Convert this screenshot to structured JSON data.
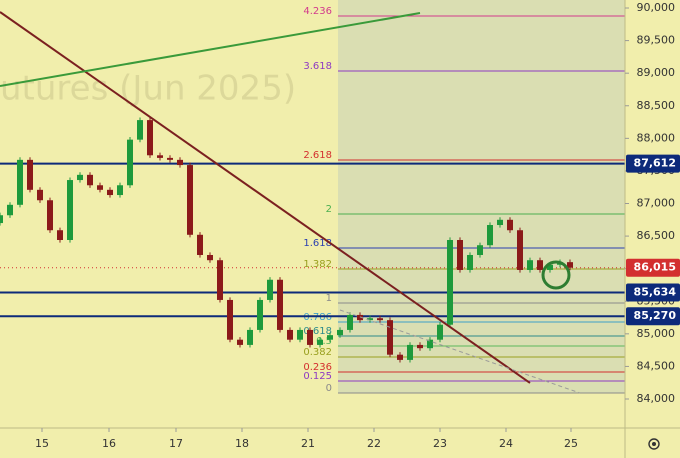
{
  "chart_data": {
    "type": "candlestick",
    "watermark": "utures (Jun 2025)",
    "x": [
      0,
      1,
      2,
      3,
      4,
      5,
      6,
      7,
      8,
      9,
      10,
      11,
      12,
      13,
      14,
      15,
      16,
      17,
      18,
      19,
      20,
      21,
      22,
      23,
      24,
      25,
      26,
      27,
      28,
      29,
      30,
      31,
      32,
      33,
      34,
      35,
      36,
      37,
      38,
      39,
      40,
      41,
      42,
      43,
      44,
      45,
      46,
      47,
      48,
      49,
      50,
      51,
      52,
      53,
      54,
      55,
      56,
      57
    ],
    "open": [
      86700,
      86820,
      86980,
      87670,
      87210,
      87050,
      86590,
      86440,
      87360,
      87440,
      87280,
      87210,
      87130,
      87280,
      87980,
      88280,
      87740,
      87700,
      87670,
      87590,
      86520,
      86210,
      86130,
      85520,
      84910,
      84830,
      85060,
      85520,
      85830,
      85060,
      84910,
      85060,
      84830,
      84910,
      84980,
      85060,
      85290,
      85210,
      85240,
      85210,
      84680,
      84600,
      84830,
      84780,
      84910,
      85140,
      86440,
      85980,
      86210,
      86360,
      86670,
      86750,
      86590,
      85980,
      86130,
      85980,
      86060,
      86100
    ],
    "high": [
      86860,
      87020,
      87710,
      87710,
      87250,
      87090,
      86630,
      87400,
      87480,
      87480,
      87320,
      87250,
      87320,
      88020,
      88320,
      88320,
      87780,
      87740,
      87710,
      87630,
      86560,
      86250,
      86170,
      85560,
      84950,
      85100,
      85560,
      85870,
      85870,
      85100,
      85100,
      85100,
      84950,
      85020,
      85100,
      85330,
      85330,
      85280,
      85280,
      85250,
      84720,
      84870,
      84870,
      84950,
      85180,
      86480,
      86480,
      86250,
      86400,
      86710,
      86790,
      86790,
      86630,
      86170,
      86170,
      86100,
      86140,
      86140
    ],
    "low": [
      86660,
      86780,
      86940,
      87170,
      87010,
      86550,
      86400,
      86400,
      87320,
      87240,
      87170,
      87090,
      87090,
      87240,
      87940,
      87700,
      87660,
      87630,
      87550,
      86480,
      86170,
      86090,
      85480,
      84870,
      84790,
      84790,
      85020,
      85480,
      85020,
      84870,
      84870,
      84790,
      84790,
      84870,
      84940,
      85020,
      85170,
      85170,
      85170,
      84640,
      84560,
      84560,
      84740,
      84740,
      84870,
      85100,
      85940,
      85940,
      86170,
      86320,
      86630,
      86550,
      85940,
      85940,
      85940,
      85940,
      86020,
      85975
    ],
    "close": [
      86820,
      86980,
      87670,
      87210,
      87050,
      86590,
      86440,
      87360,
      87440,
      87280,
      87210,
      87130,
      87280,
      87980,
      88280,
      87740,
      87700,
      87670,
      87590,
      86520,
      86210,
      86130,
      85520,
      84910,
      84830,
      85060,
      85520,
      85830,
      85060,
      84910,
      85060,
      84830,
      84910,
      84980,
      85060,
      85290,
      85210,
      85240,
      85210,
      84680,
      84600,
      84830,
      84780,
      84910,
      85140,
      86440,
      85980,
      86210,
      86360,
      86670,
      86750,
      86590,
      85980,
      86130,
      85980,
      86060,
      86100,
      86015
    ],
    "up_color": "#1e9a3c",
    "down_color": "#8b1a1a",
    "xlim": [
      0,
      62.5
    ],
    "xticks": [
      {
        "value": 4.2,
        "label": "15"
      },
      {
        "value": 10.9,
        "label": "16"
      },
      {
        "value": 17.6,
        "label": "17"
      },
      {
        "value": 24.2,
        "label": "18"
      },
      {
        "value": 30.8,
        "label": "21"
      },
      {
        "value": 37.4,
        "label": "22"
      },
      {
        "value": 44.0,
        "label": "23"
      },
      {
        "value": 50.6,
        "label": "24"
      },
      {
        "value": 57.1,
        "label": "25"
      }
    ],
    "ylim": [
      83555,
      90123
    ],
    "yticks": [
      {
        "value": 84000,
        "label": "84,000"
      },
      {
        "value": 84500,
        "label": "84,500"
      },
      {
        "value": 85000,
        "label": "85,000"
      },
      {
        "value": 85500,
        "label": "85,500"
      },
      {
        "value": 86000,
        "label": "86,000"
      },
      {
        "value": 86500,
        "label": "86,500"
      },
      {
        "value": 87000,
        "label": "87,000"
      },
      {
        "value": 87500,
        "label": "87,500"
      },
      {
        "value": 88000,
        "label": "88,000"
      },
      {
        "value": 88500,
        "label": "88,500"
      },
      {
        "value": 89000,
        "label": "89,000"
      },
      {
        "value": 89500,
        "label": "89,500"
      },
      {
        "value": 90000,
        "label": "90,000"
      }
    ],
    "fib": {
      "x_start": 33.8,
      "shade": "#d4d9b4",
      "levels": [
        4.236,
        3.618,
        2.618,
        2,
        1.618,
        1.382,
        1,
        0.786,
        0.618,
        0.5,
        0.382,
        0.236,
        0.125,
        0
      ],
      "prices": [
        89877,
        89033,
        87668,
        86839,
        86318,
        85995,
        85473,
        85182,
        84967,
        84813,
        84645,
        84415,
        84276,
        84092
      ],
      "colors": [
        "#d23a8c",
        "#8e3bc2",
        "#d32f2f",
        "#4caf50",
        "#2a3fb0",
        "#9aa020",
        "#8a8a8a",
        "#3fa0c8",
        "#2e8b8b",
        "#5cb85c",
        "#9aa020",
        "#d32f2f",
        "#8e3bc2",
        "#8a8a8a"
      ]
    },
    "trendlines": [
      {
        "color": "#7b2020",
        "x": [
          0,
          53
        ],
        "y": [
          89939,
          84246
        ]
      },
      {
        "color": "#3a9a3a",
        "x": [
          0,
          42
        ],
        "y": [
          88803,
          89923
        ]
      },
      {
        "color": "#9a9a9a",
        "dashed": true,
        "x": [
          34,
          58
        ],
        "y": [
          85366,
          84092
        ]
      }
    ],
    "levels": [
      {
        "value": 87612,
        "label": "87,612",
        "color": "#0d2a7a"
      },
      {
        "value": 85634,
        "label": "85,634",
        "color": "#0d2a7a"
      },
      {
        "value": 85270,
        "label": "85,270",
        "color": "#0d2a7a"
      },
      {
        "value": 86015,
        "label": "86,015",
        "color": "#d32f2f"
      }
    ]
  }
}
